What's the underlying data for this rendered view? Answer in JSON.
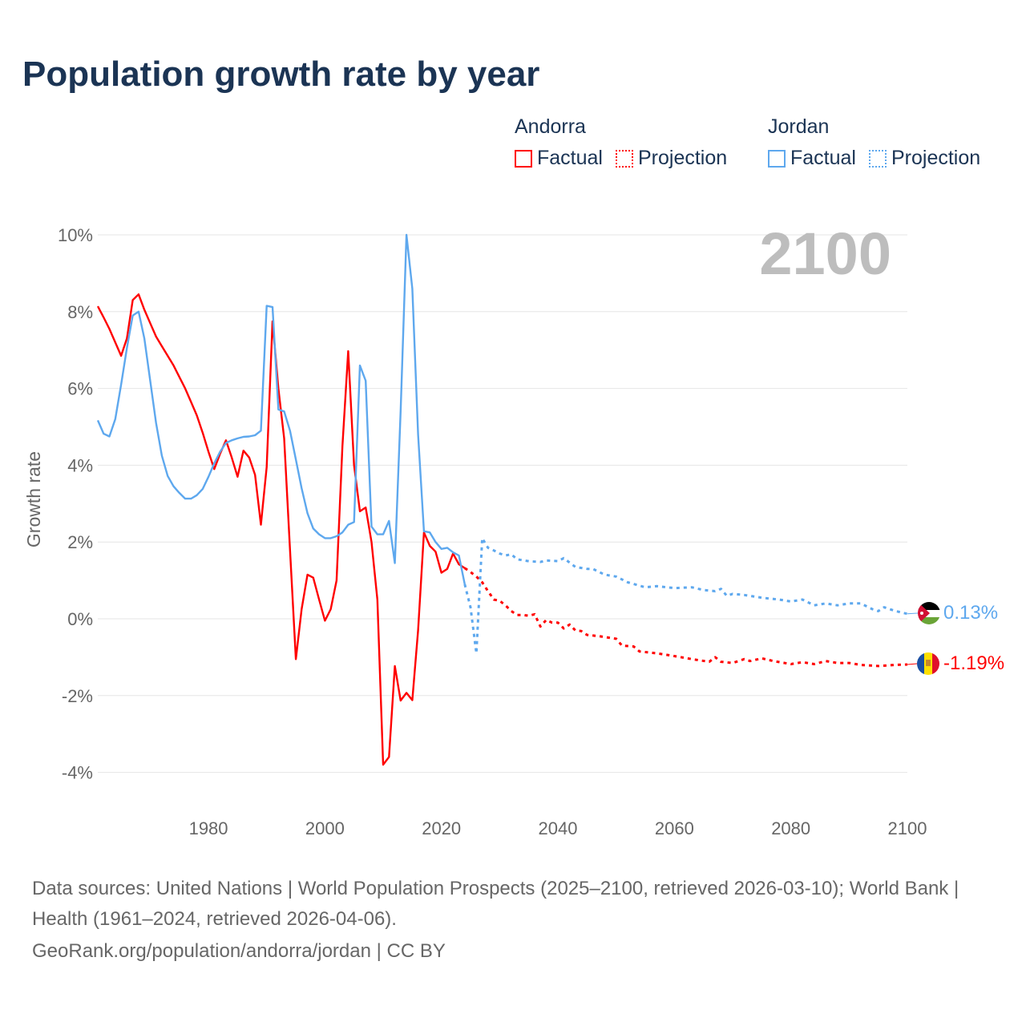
{
  "title": "Population growth rate by year",
  "legend": {
    "groups": [
      {
        "name": "Andorra",
        "factual": "Factual",
        "projection": "Projection",
        "color": "#ff0000"
      },
      {
        "name": "Jordan",
        "factual": "Factual",
        "projection": "Projection",
        "color": "#5ea8ee"
      }
    ]
  },
  "year_watermark": "2100",
  "end_labels": {
    "jordan": "0.13%",
    "andorra": "-1.19%"
  },
  "sources": {
    "line1": "Data sources: United Nations | World Population Prospects (2025–2100, retrieved 2026-03-10); World Bank | Health (1961–2024, retrieved 2026-04-06).",
    "line2": "GeoRank.org/population/andorra/jordan | CC BY"
  },
  "chart_data": {
    "type": "line",
    "title": "Population growth rate by year",
    "xlabel": "",
    "ylabel": "Growth rate",
    "xlim": [
      1961,
      2100
    ],
    "ylim": [
      -4.5,
      10
    ],
    "xticks": [
      1980,
      2000,
      2020,
      2040,
      2060,
      2080,
      2100
    ],
    "xtick_labels": [
      "1980",
      "2000",
      "2020",
      "2040",
      "2060",
      "2080",
      "2100"
    ],
    "yticks": [
      -4,
      -2,
      0,
      2,
      4,
      6,
      8,
      10
    ],
    "ytick_labels": [
      "-4%",
      "-2%",
      "0%",
      "2%",
      "4%",
      "6%",
      "8%",
      "10%"
    ],
    "grid": true,
    "legend_placement": "top-right",
    "series": [
      {
        "name": "Andorra Factual",
        "color": "#ff0000",
        "style": "solid",
        "points": [
          [
            1961,
            8.14
          ],
          [
            1962,
            7.85
          ],
          [
            1963,
            7.55
          ],
          [
            1964,
            7.2
          ],
          [
            1965,
            6.85
          ],
          [
            1966,
            7.3
          ],
          [
            1967,
            8.3
          ],
          [
            1968,
            8.45
          ],
          [
            1969,
            8.05
          ],
          [
            1970,
            7.7
          ],
          [
            1971,
            7.35
          ],
          [
            1972,
            7.1
          ],
          [
            1973,
            6.85
          ],
          [
            1974,
            6.6
          ],
          [
            1975,
            6.3
          ],
          [
            1976,
            6.0
          ],
          [
            1977,
            5.65
          ],
          [
            1978,
            5.3
          ],
          [
            1979,
            4.85
          ],
          [
            1980,
            4.35
          ],
          [
            1981,
            3.9
          ],
          [
            1982,
            4.3
          ],
          [
            1983,
            4.65
          ],
          [
            1984,
            4.2
          ],
          [
            1985,
            3.7
          ],
          [
            1986,
            4.38
          ],
          [
            1987,
            4.2
          ],
          [
            1988,
            3.75
          ],
          [
            1989,
            2.45
          ],
          [
            1990,
            3.95
          ],
          [
            1991,
            7.75
          ],
          [
            1992,
            6.0
          ],
          [
            1993,
            4.7
          ],
          [
            1994,
            1.8
          ],
          [
            1995,
            -1.05
          ],
          [
            1996,
            0.25
          ],
          [
            1997,
            1.15
          ],
          [
            1998,
            1.07
          ],
          [
            1999,
            0.5
          ],
          [
            2000,
            -0.05
          ],
          [
            2001,
            0.25
          ],
          [
            2002,
            1.0
          ],
          [
            2003,
            4.5
          ],
          [
            2004,
            6.97
          ],
          [
            2005,
            4.0
          ],
          [
            2006,
            2.8
          ],
          [
            2007,
            2.9
          ],
          [
            2008,
            2.0
          ],
          [
            2009,
            0.5
          ],
          [
            2010,
            -3.8
          ],
          [
            2011,
            -3.6
          ],
          [
            2012,
            -1.23
          ],
          [
            2013,
            -2.13
          ],
          [
            2014,
            -1.93
          ],
          [
            2015,
            -2.12
          ],
          [
            2016,
            -0.3
          ],
          [
            2017,
            2.25
          ],
          [
            2018,
            1.9
          ],
          [
            2019,
            1.75
          ],
          [
            2020,
            1.2
          ],
          [
            2021,
            1.3
          ],
          [
            2022,
            1.7
          ],
          [
            2023,
            1.42
          ],
          [
            2024,
            1.32
          ]
        ]
      },
      {
        "name": "Andorra Projection",
        "color": "#ff0000",
        "style": "dotted",
        "points": [
          [
            2024,
            1.32
          ],
          [
            2025,
            1.22
          ],
          [
            2026,
            1.1
          ],
          [
            2027,
            0.95
          ],
          [
            2028,
            0.72
          ],
          [
            2029,
            0.5
          ],
          [
            2030,
            0.47
          ],
          [
            2031,
            0.35
          ],
          [
            2032,
            0.2
          ],
          [
            2033,
            0.1
          ],
          [
            2034,
            0.1
          ],
          [
            2035,
            0.08
          ],
          [
            2036,
            0.12
          ],
          [
            2037,
            -0.2
          ],
          [
            2038,
            -0.03
          ],
          [
            2039,
            -0.1
          ],
          [
            2040,
            -0.1
          ],
          [
            2041,
            -0.25
          ],
          [
            2042,
            -0.15
          ],
          [
            2043,
            -0.3
          ],
          [
            2044,
            -0.32
          ],
          [
            2045,
            -0.42
          ],
          [
            2047,
            -0.45
          ],
          [
            2050,
            -0.52
          ],
          [
            2051,
            -0.7
          ],
          [
            2053,
            -0.72
          ],
          [
            2054,
            -0.85
          ],
          [
            2057,
            -0.9
          ],
          [
            2060,
            -0.97
          ],
          [
            2063,
            -1.05
          ],
          [
            2066,
            -1.12
          ],
          [
            2067,
            -1.0
          ],
          [
            2068,
            -1.12
          ],
          [
            2070,
            -1.15
          ],
          [
            2072,
            -1.05
          ],
          [
            2073,
            -1.1
          ],
          [
            2075,
            -1.03
          ],
          [
            2077,
            -1.1
          ],
          [
            2080,
            -1.18
          ],
          [
            2082,
            -1.13
          ],
          [
            2084,
            -1.18
          ],
          [
            2086,
            -1.1
          ],
          [
            2088,
            -1.15
          ],
          [
            2090,
            -1.15
          ],
          [
            2092,
            -1.2
          ],
          [
            2095,
            -1.23
          ],
          [
            2098,
            -1.2
          ],
          [
            2100,
            -1.19
          ]
        ]
      },
      {
        "name": "Jordan Factual",
        "color": "#5ea8ee",
        "style": "solid",
        "points": [
          [
            1961,
            5.17
          ],
          [
            1962,
            4.82
          ],
          [
            1963,
            4.75
          ],
          [
            1964,
            5.2
          ],
          [
            1965,
            6.1
          ],
          [
            1966,
            7.05
          ],
          [
            1967,
            7.9
          ],
          [
            1968,
            8.0
          ],
          [
            1969,
            7.3
          ],
          [
            1970,
            6.2
          ],
          [
            1971,
            5.1
          ],
          [
            1972,
            4.25
          ],
          [
            1973,
            3.72
          ],
          [
            1974,
            3.45
          ],
          [
            1975,
            3.28
          ],
          [
            1976,
            3.13
          ],
          [
            1977,
            3.13
          ],
          [
            1978,
            3.22
          ],
          [
            1979,
            3.38
          ],
          [
            1980,
            3.7
          ],
          [
            1981,
            4.05
          ],
          [
            1982,
            4.35
          ],
          [
            1983,
            4.58
          ],
          [
            1984,
            4.65
          ],
          [
            1985,
            4.7
          ],
          [
            1986,
            4.74
          ],
          [
            1987,
            4.75
          ],
          [
            1988,
            4.78
          ],
          [
            1989,
            4.9
          ],
          [
            1990,
            8.15
          ],
          [
            1991,
            8.12
          ],
          [
            1992,
            5.45
          ],
          [
            1993,
            5.4
          ],
          [
            1994,
            4.9
          ],
          [
            1995,
            4.15
          ],
          [
            1996,
            3.4
          ],
          [
            1997,
            2.75
          ],
          [
            1998,
            2.35
          ],
          [
            1999,
            2.2
          ],
          [
            2000,
            2.1
          ],
          [
            2001,
            2.1
          ],
          [
            2002,
            2.15
          ],
          [
            2003,
            2.25
          ],
          [
            2004,
            2.45
          ],
          [
            2005,
            2.52
          ],
          [
            2006,
            6.6
          ],
          [
            2007,
            6.2
          ],
          [
            2008,
            2.4
          ],
          [
            2009,
            2.2
          ],
          [
            2010,
            2.2
          ],
          [
            2011,
            2.55
          ],
          [
            2012,
            1.45
          ],
          [
            2013,
            5.4
          ],
          [
            2014,
            10.0
          ],
          [
            2015,
            8.6
          ],
          [
            2016,
            4.8
          ],
          [
            2017,
            2.28
          ],
          [
            2018,
            2.25
          ],
          [
            2019,
            2.0
          ],
          [
            2020,
            1.82
          ],
          [
            2021,
            1.85
          ],
          [
            2022,
            1.73
          ],
          [
            2023,
            1.65
          ],
          [
            2024,
            0.9
          ]
        ]
      },
      {
        "name": "Jordan Projection",
        "color": "#5ea8ee",
        "style": "dotted",
        "points": [
          [
            2024,
            0.9
          ],
          [
            2025,
            0.3
          ],
          [
            2026,
            -0.9
          ],
          [
            2027,
            2.1
          ],
          [
            2028,
            1.85
          ],
          [
            2029,
            1.78
          ],
          [
            2030,
            1.7
          ],
          [
            2031,
            1.65
          ],
          [
            2032,
            1.68
          ],
          [
            2033,
            1.55
          ],
          [
            2035,
            1.5
          ],
          [
            2037,
            1.48
          ],
          [
            2038,
            1.52
          ],
          [
            2040,
            1.5
          ],
          [
            2041,
            1.58
          ],
          [
            2043,
            1.35
          ],
          [
            2045,
            1.3
          ],
          [
            2046,
            1.3
          ],
          [
            2048,
            1.15
          ],
          [
            2050,
            1.1
          ],
          [
            2052,
            0.95
          ],
          [
            2055,
            0.82
          ],
          [
            2057,
            0.85
          ],
          [
            2060,
            0.8
          ],
          [
            2063,
            0.82
          ],
          [
            2065,
            0.75
          ],
          [
            2067,
            0.72
          ],
          [
            2068,
            0.78
          ],
          [
            2069,
            0.6
          ],
          [
            2070,
            0.65
          ],
          [
            2072,
            0.62
          ],
          [
            2075,
            0.55
          ],
          [
            2078,
            0.5
          ],
          [
            2080,
            0.45
          ],
          [
            2082,
            0.5
          ],
          [
            2084,
            0.35
          ],
          [
            2086,
            0.4
          ],
          [
            2088,
            0.35
          ],
          [
            2090,
            0.4
          ],
          [
            2092,
            0.4
          ],
          [
            2094,
            0.25
          ],
          [
            2095,
            0.2
          ],
          [
            2096,
            0.3
          ],
          [
            2098,
            0.2
          ],
          [
            2100,
            0.13
          ]
        ]
      }
    ]
  }
}
